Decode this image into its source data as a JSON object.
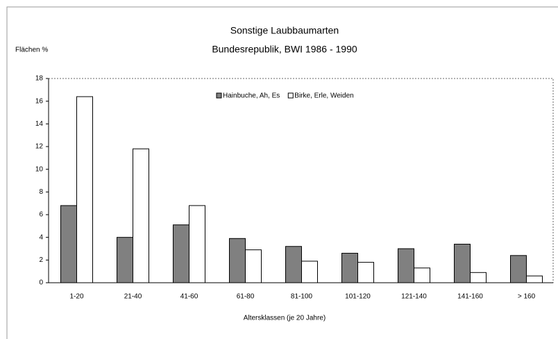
{
  "chart_data": {
    "type": "bar",
    "title": "Sonstige Laubbaumarten",
    "subtitle": "Bundesrepublik, BWI 1986 - 1990",
    "y_label": "Flächen %",
    "x_label": "Altersklassen (je 20 Jahre)",
    "categories": [
      "1-20",
      "21-40",
      "41-60",
      "61-80",
      "81-100",
      "101-120",
      "121-140",
      "141-160",
      "> 160"
    ],
    "series": [
      {
        "name": "Hainbuche, Ah, Es",
        "color": "#808080",
        "values": [
          6.8,
          4.0,
          5.1,
          3.9,
          3.2,
          2.6,
          3.0,
          3.4,
          2.4
        ]
      },
      {
        "name": "Birke, Erle, Weiden",
        "color": "#ffffff",
        "values": [
          16.4,
          11.8,
          6.8,
          2.9,
          1.9,
          1.8,
          1.3,
          0.9,
          0.6
        ]
      }
    ],
    "ylim": [
      0,
      18
    ],
    "yticks": [
      0,
      2,
      4,
      6,
      8,
      10,
      12,
      14,
      16,
      18
    ],
    "legend": "top"
  }
}
